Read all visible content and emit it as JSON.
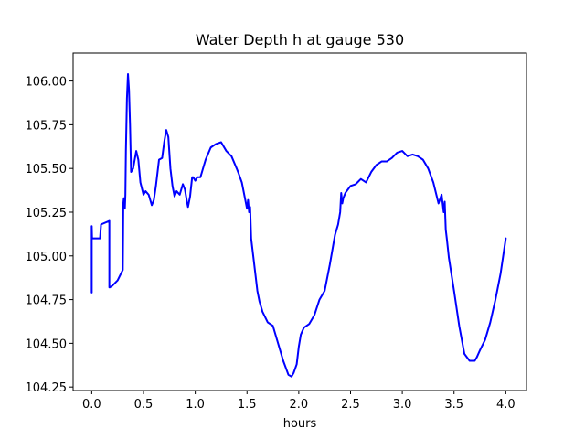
{
  "chart_data": {
    "type": "line",
    "title": "Water Depth h at gauge 530",
    "xlabel": "hours",
    "ylabel": "",
    "xlim": [
      -0.18,
      4.2
    ],
    "ylim": [
      104.23,
      106.16
    ],
    "xticks": [
      0.0,
      0.5,
      1.0,
      1.5,
      2.0,
      2.5,
      3.0,
      3.5,
      4.0
    ],
    "xtick_labels": [
      "0.0",
      "0.5",
      "1.0",
      "1.5",
      "2.0",
      "2.5",
      "3.0",
      "3.5",
      "4.0"
    ],
    "yticks": [
      104.25,
      104.5,
      104.75,
      105.0,
      105.25,
      105.5,
      105.75,
      106.0
    ],
    "ytick_labels": [
      "104.25",
      "104.50",
      "104.75",
      "105.00",
      "105.25",
      "105.50",
      "105.75",
      "106.00"
    ],
    "grid": false,
    "line_color": "#0000ff",
    "series": [
      {
        "x": [
          0.0,
          0.0,
          0.003,
          0.005,
          0.08,
          0.09,
          0.17,
          0.17,
          0.175,
          0.2,
          0.25,
          0.3,
          0.305,
          0.31,
          0.32,
          0.325,
          0.33,
          0.34,
          0.35,
          0.36,
          0.37,
          0.38,
          0.4,
          0.43,
          0.45,
          0.47,
          0.5,
          0.52,
          0.55,
          0.58,
          0.6,
          0.62,
          0.65,
          0.68,
          0.7,
          0.72,
          0.74,
          0.76,
          0.78,
          0.8,
          0.82,
          0.85,
          0.88,
          0.9,
          0.92,
          0.93,
          0.95,
          0.97,
          0.98,
          1.0,
          1.02,
          1.05,
          1.1,
          1.15,
          1.2,
          1.25,
          1.3,
          1.35,
          1.4,
          1.42,
          1.45,
          1.48,
          1.5,
          1.51,
          1.52,
          1.53,
          1.54,
          1.55,
          1.56,
          1.58,
          1.6,
          1.62,
          1.65,
          1.7,
          1.75,
          1.8,
          1.85,
          1.9,
          1.93,
          1.95,
          1.98,
          2.0,
          2.02,
          2.05,
          2.1,
          2.15,
          2.2,
          2.25,
          2.3,
          2.35,
          2.38,
          2.4,
          2.41,
          2.42,
          2.43,
          2.45,
          2.5,
          2.55,
          2.6,
          2.65,
          2.7,
          2.75,
          2.8,
          2.85,
          2.9,
          2.95,
          3.0,
          3.05,
          3.1,
          3.15,
          3.2,
          3.25,
          3.3,
          3.35,
          3.38,
          3.4,
          3.41,
          3.42,
          3.43,
          3.45,
          3.5,
          3.55,
          3.6,
          3.65,
          3.7,
          3.72,
          3.75,
          3.8,
          3.85,
          3.9,
          3.95,
          4.0
        ],
        "y": [
          104.79,
          105.17,
          105.1,
          105.1,
          105.1,
          105.18,
          105.2,
          104.82,
          104.82,
          104.83,
          104.86,
          104.92,
          105.3,
          105.33,
          105.27,
          105.35,
          105.6,
          105.9,
          106.04,
          105.95,
          105.75,
          105.48,
          105.5,
          105.6,
          105.55,
          105.42,
          105.35,
          105.37,
          105.35,
          105.29,
          105.32,
          105.4,
          105.55,
          105.56,
          105.65,
          105.72,
          105.68,
          105.5,
          105.4,
          105.34,
          105.37,
          105.35,
          105.41,
          105.38,
          105.31,
          105.28,
          105.34,
          105.45,
          105.45,
          105.43,
          105.45,
          105.45,
          105.55,
          105.62,
          105.64,
          105.65,
          105.6,
          105.57,
          105.5,
          105.47,
          105.42,
          105.33,
          105.27,
          105.32,
          105.25,
          105.28,
          105.1,
          105.05,
          105.0,
          104.9,
          104.8,
          104.74,
          104.68,
          104.62,
          104.6,
          104.5,
          104.4,
          104.32,
          104.31,
          104.33,
          104.38,
          104.48,
          104.55,
          104.59,
          104.61,
          104.66,
          104.75,
          104.8,
          104.95,
          105.12,
          105.18,
          105.25,
          105.36,
          105.3,
          105.33,
          105.36,
          105.4,
          105.41,
          105.44,
          105.42,
          105.48,
          105.52,
          105.54,
          105.54,
          105.56,
          105.59,
          105.6,
          105.57,
          105.58,
          105.57,
          105.55,
          105.5,
          105.42,
          105.3,
          105.35,
          105.25,
          105.31,
          105.15,
          105.1,
          104.99,
          104.8,
          104.6,
          104.44,
          104.4,
          104.4,
          104.42,
          104.46,
          104.52,
          104.62,
          104.75,
          104.9,
          105.1
        ]
      }
    ]
  }
}
